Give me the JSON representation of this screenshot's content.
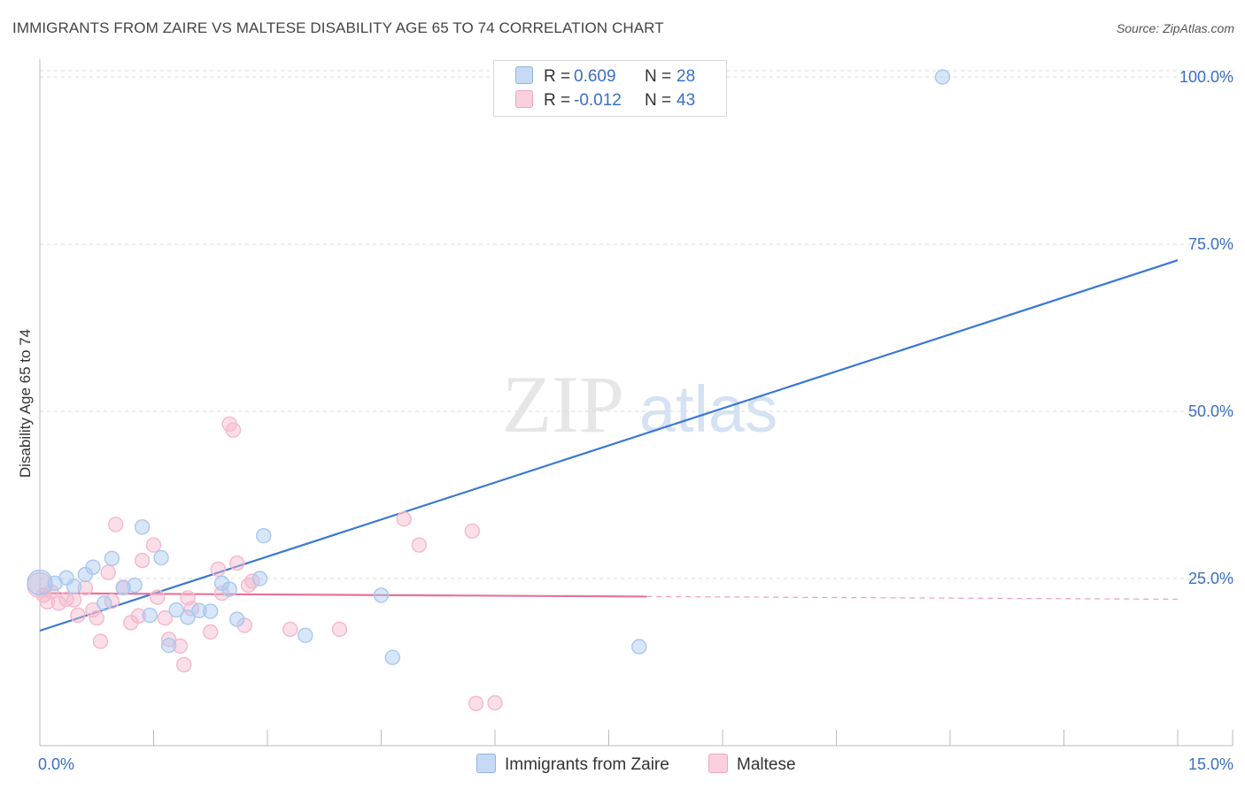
{
  "title": "IMMIGRANTS FROM ZAIRE VS MALTESE DISABILITY AGE 65 TO 74 CORRELATION CHART",
  "source": "Source: ZipAtlas.com",
  "watermark": {
    "zip": "ZIP",
    "atlas": "atlas"
  },
  "legend": {
    "rows": [
      {
        "r_label": "R =",
        "r_value": "0.609",
        "n_label": "N =",
        "n_value": "28",
        "color": "#a8c8f0"
      },
      {
        "r_label": "R =",
        "r_value": "-0.012",
        "n_label": "N =",
        "n_value": "43",
        "color": "#f5b8cc"
      }
    ]
  },
  "bottom_legend": [
    {
      "label": "Immigrants from Zaire",
      "color": "#a8c8f0"
    },
    {
      "label": "Maltese",
      "color": "#f5b8cc"
    }
  ],
  "chart_data": {
    "type": "scatter",
    "title": "IMMIGRANTS FROM ZAIRE VS MALTESE DISABILITY AGE 65 TO 74 CORRELATION CHART",
    "xlabel": "",
    "ylabel": "Disability Age 65 to 74",
    "xlim": [
      0,
      15
    ],
    "ylim": [
      0,
      102
    ],
    "x_tick_labels": [
      {
        "value": 0,
        "label": "0.0%"
      },
      {
        "value": 15,
        "label": "15.0%"
      }
    ],
    "y_tick_labels": [
      {
        "value": 25,
        "label": "25.0%"
      },
      {
        "value": 50,
        "label": "50.0%"
      },
      {
        "value": 75,
        "label": "75.0%"
      },
      {
        "value": 100,
        "label": "100.0%"
      }
    ],
    "series": [
      {
        "name": "Immigrants from Zaire",
        "color": "#3a78d4",
        "fill": "#a8c8f0",
        "R": 0.609,
        "N": 28,
        "trend": {
          "x0": 0,
          "y0": 17.2,
          "x1": 15,
          "y1": 72.6
        },
        "points": [
          [
            0.0,
            24.4
          ],
          [
            0.2,
            24.3
          ],
          [
            0.35,
            25.1
          ],
          [
            0.45,
            23.8
          ],
          [
            0.6,
            25.6
          ],
          [
            0.7,
            26.7
          ],
          [
            0.85,
            21.3
          ],
          [
            0.95,
            28.0
          ],
          [
            1.1,
            23.6
          ],
          [
            1.25,
            24.0
          ],
          [
            1.35,
            32.7
          ],
          [
            1.45,
            19.5
          ],
          [
            1.6,
            28.1
          ],
          [
            1.7,
            15.0
          ],
          [
            1.8,
            20.3
          ],
          [
            1.95,
            19.2
          ],
          [
            2.1,
            20.2
          ],
          [
            2.25,
            20.1
          ],
          [
            2.4,
            24.3
          ],
          [
            2.5,
            23.4
          ],
          [
            2.6,
            18.9
          ],
          [
            2.9,
            25.0
          ],
          [
            2.95,
            31.4
          ],
          [
            3.5,
            16.5
          ],
          [
            4.5,
            22.5
          ],
          [
            4.65,
            13.2
          ],
          [
            7.9,
            14.8
          ],
          [
            11.9,
            100.0
          ]
        ]
      },
      {
        "name": "Maltese",
        "color": "#e8729a",
        "fill": "#f5b8cc",
        "R": -0.012,
        "N": 43,
        "trend": {
          "x0": 0,
          "y0": 22.8,
          "x1": 8.0,
          "y1": 22.3,
          "dash_to": 15,
          "dash_y": 21.9
        },
        "points": [
          [
            0.0,
            24.0
          ],
          [
            0.05,
            22.5
          ],
          [
            0.1,
            21.5
          ],
          [
            0.25,
            21.3
          ],
          [
            0.35,
            21.9
          ],
          [
            0.45,
            21.8
          ],
          [
            0.5,
            19.5
          ],
          [
            0.6,
            23.6
          ],
          [
            0.7,
            20.3
          ],
          [
            0.75,
            19.1
          ],
          [
            0.8,
            15.6
          ],
          [
            0.9,
            25.9
          ],
          [
            0.95,
            21.6
          ],
          [
            1.0,
            33.1
          ],
          [
            1.1,
            23.7
          ],
          [
            1.2,
            18.4
          ],
          [
            1.3,
            19.4
          ],
          [
            1.35,
            27.7
          ],
          [
            1.5,
            30.0
          ],
          [
            1.55,
            22.2
          ],
          [
            1.65,
            19.1
          ],
          [
            1.7,
            15.9
          ],
          [
            1.85,
            14.9
          ],
          [
            1.9,
            12.1
          ],
          [
            1.95,
            22.1
          ],
          [
            2.0,
            20.5
          ],
          [
            2.25,
            17.0
          ],
          [
            2.35,
            26.4
          ],
          [
            2.4,
            22.8
          ],
          [
            2.5,
            48.1
          ],
          [
            2.55,
            47.2
          ],
          [
            2.6,
            27.3
          ],
          [
            2.7,
            18.0
          ],
          [
            2.75,
            24.0
          ],
          [
            2.8,
            24.6
          ],
          [
            3.3,
            17.4
          ],
          [
            3.95,
            17.4
          ],
          [
            4.8,
            33.9
          ],
          [
            5.0,
            30.0
          ],
          [
            5.7,
            32.1
          ],
          [
            5.75,
            6.3
          ],
          [
            6.0,
            6.4
          ],
          [
            0.15,
            23.0
          ]
        ]
      }
    ]
  }
}
